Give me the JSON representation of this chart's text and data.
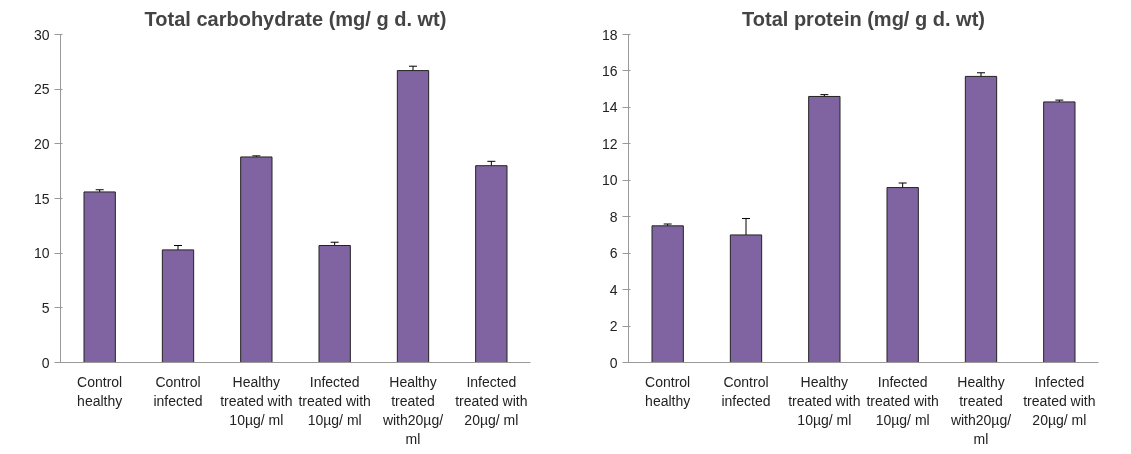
{
  "chart_data": [
    {
      "type": "bar",
      "title": "Total carbohydrate (mg/ g d. wt)",
      "categories": [
        "Control\nhealthy",
        "Control\ninfected",
        "Healthy\ntreated with\n10µg/ ml",
        "Infected\ntreated with\n10µg/ ml",
        "Healthy\ntreated\nwith20µg/\nml",
        "Infected\ntreated with\n20µg/ ml"
      ],
      "values": [
        15.6,
        10.3,
        18.8,
        10.7,
        26.7,
        18.0
      ],
      "errors": [
        0.2,
        0.4,
        0.1,
        0.3,
        0.4,
        0.4
      ],
      "color": "#8064a2",
      "ylim": [
        0,
        30
      ],
      "yticks": [
        0,
        5,
        10,
        15,
        20,
        25,
        30
      ],
      "grid": false
    },
    {
      "type": "bar",
      "title": "Total protein (mg/ g d. wt)",
      "categories": [
        "Control\nhealthy",
        "Control\ninfected",
        "Healthy\ntreated with\n10µg/ ml",
        "Infected\ntreated with\n10µg/ ml",
        "Healthy\ntreated\nwith20µg/\nml",
        "Infected\ntreated with\n20µg/ ml"
      ],
      "values": [
        7.5,
        7.0,
        14.6,
        9.6,
        15.7,
        14.3
      ],
      "errors": [
        0.1,
        0.9,
        0.1,
        0.25,
        0.2,
        0.1
      ],
      "color": "#8064a2",
      "ylim": [
        0,
        18
      ],
      "yticks": [
        0,
        2,
        4,
        6,
        8,
        10,
        12,
        14,
        16,
        18
      ],
      "grid": false
    }
  ]
}
